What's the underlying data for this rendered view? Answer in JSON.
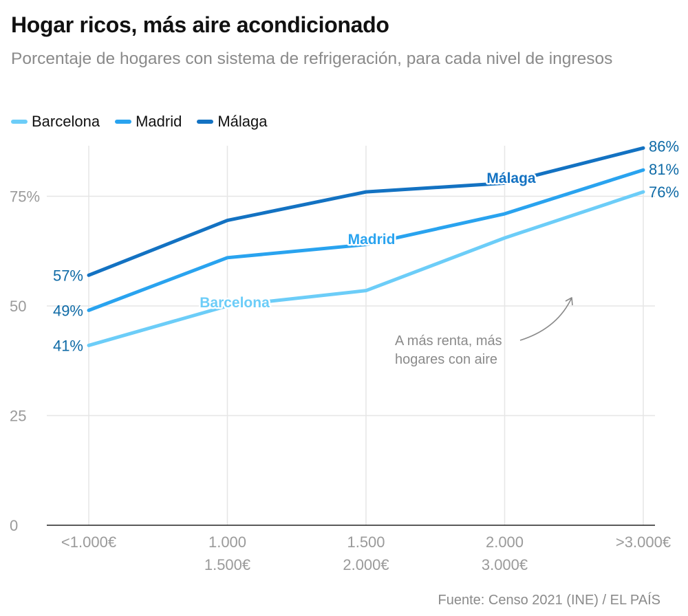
{
  "header": {
    "title": "Hogar ricos, más aire acondicionado",
    "subtitle": "Porcentaje de hogares con sistema de refrigeración, para cada nivel de ingresos"
  },
  "source": "Fuente: Censo 2021 (INE) / EL PAÍS",
  "chart_data": {
    "type": "line",
    "title": "Hogar ricos, más aire acondicionado",
    "subtitle": "Porcentaje de hogares con sistema de refrigeración, para cada nivel de ingresos",
    "xlabel": "",
    "ylabel": "",
    "ylim": [
      0,
      86
    ],
    "yticks": [
      0,
      25,
      50,
      75
    ],
    "ytick_labels": [
      "0",
      "25",
      "50",
      "75%"
    ],
    "grid": true,
    "legend_position": "top-left",
    "categories": [
      [
        "<1.000€"
      ],
      [
        "1.000",
        "1.500€"
      ],
      [
        "1.500",
        "2.000€"
      ],
      [
        "2.000",
        "3.000€"
      ],
      [
        ">3.000€"
      ]
    ],
    "series": [
      {
        "name": "Barcelona",
        "color": "#6ccdf8",
        "values": [
          41,
          50,
          53.5,
          65.5,
          76
        ],
        "start_label": "41%",
        "end_label": "76%"
      },
      {
        "name": "Madrid",
        "color": "#29a3ef",
        "values": [
          49,
          61,
          64,
          71,
          81
        ],
        "start_label": "49%",
        "end_label": "81%"
      },
      {
        "name": "Málaga",
        "color": "#1372c2",
        "values": [
          57,
          69.5,
          76,
          78,
          86
        ],
        "start_label": "57%",
        "end_label": "86%"
      }
    ],
    "inline_labels": [
      {
        "series": "Barcelona",
        "text": "Barcelona"
      },
      {
        "series": "Madrid",
        "text": "Madrid"
      },
      {
        "series": "Málaga",
        "text": "Málaga"
      }
    ],
    "annotation": {
      "lines": [
        "A más renta, más",
        "hogares con aire"
      ]
    },
    "label_color": "#0e6aa6",
    "axis_text_color": "#9a9a9a",
    "grid_color": "#e6e6e6"
  }
}
